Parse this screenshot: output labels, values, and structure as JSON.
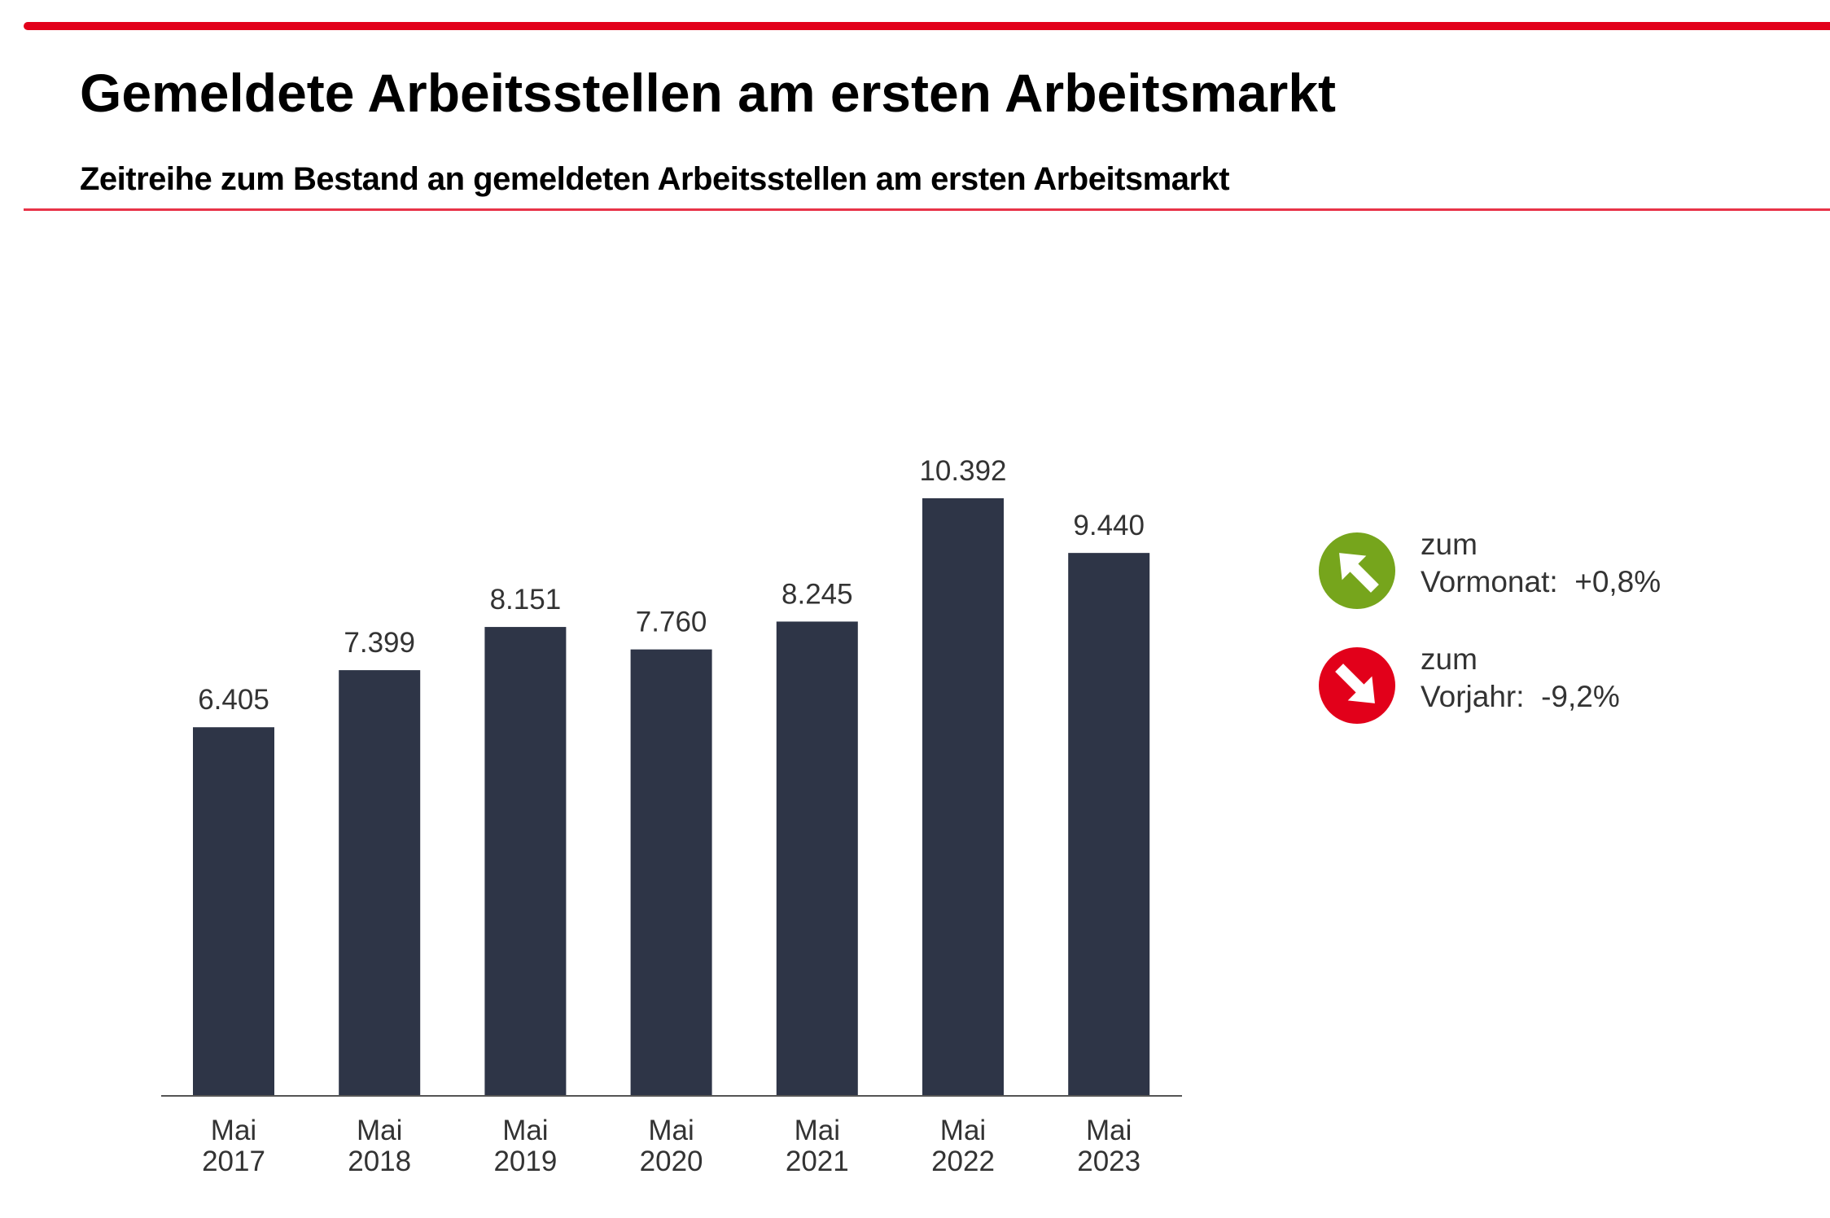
{
  "header": {
    "title": "Gemeldete Arbeitsstellen am ersten Arbeitsmarkt",
    "subtitle": "Zeitreihe zum Bestand an gemeldeten Arbeitsstellen am ersten Arbeitsmarkt"
  },
  "chart_data": {
    "type": "bar",
    "categories": [
      [
        "Mai",
        "2017"
      ],
      [
        "Mai",
        "2018"
      ],
      [
        "Mai",
        "2019"
      ],
      [
        "Mai",
        "2020"
      ],
      [
        "Mai",
        "2021"
      ],
      [
        "Mai",
        "2022"
      ],
      [
        "Mai",
        "2023"
      ]
    ],
    "values": [
      6405,
      7399,
      8151,
      7760,
      8245,
      10392,
      9440
    ],
    "value_labels": [
      "6.405",
      "7.399",
      "8.151",
      "7.760",
      "8.245",
      "10.392",
      "9.440"
    ],
    "ylim": [
      0,
      10392
    ],
    "grid": false,
    "bar_color": "#2e3547"
  },
  "indicators": [
    {
      "label1": "zum",
      "label2": "Vormonat:",
      "value": "+0,8%",
      "direction": "up",
      "icon": "arrow-up-right-icon",
      "color": "#76a51c"
    },
    {
      "label1": "zum",
      "label2": "Vorjahr:",
      "value": "-9,2%",
      "direction": "down",
      "icon": "arrow-down-right-icon",
      "color": "#e2001a"
    }
  ],
  "colors": {
    "accent": "#e2001a"
  }
}
